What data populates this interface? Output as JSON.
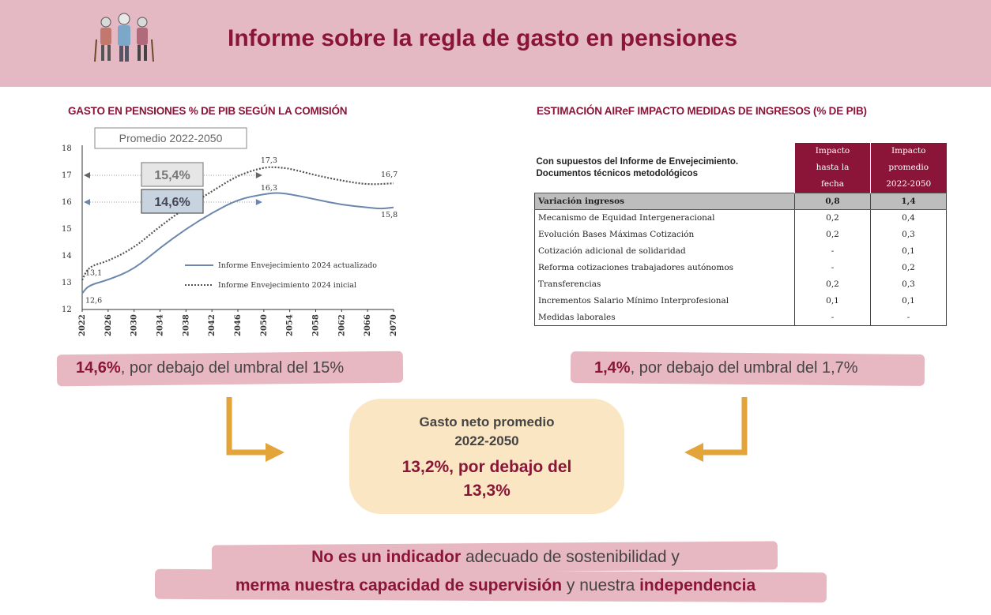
{
  "header": {
    "title": "Informe sobre la regla de gasto en pensiones",
    "colors": {
      "band": "#e5b9c3",
      "accent": "#8a1538"
    },
    "logo_icon": "elderly-people-icon"
  },
  "left_section": {
    "title": "GASTO EN PENSIONES % DE PIB SEGÚN LA COMISIÓN"
  },
  "chart_data": {
    "type": "line",
    "ylim": [
      12,
      18
    ],
    "yticks": [
      "12",
      "13",
      "14",
      "15",
      "16",
      "17",
      "18"
    ],
    "xlim": [
      2022,
      2070
    ],
    "xticks": [
      "2022",
      "2026",
      "2030",
      "2034",
      "2038",
      "2042",
      "2046",
      "2050",
      "2054",
      "2058",
      "2062",
      "2066",
      "2070"
    ],
    "series": [
      {
        "name": "Informe Envejecimiento 2024 actualizado",
        "style": "solid",
        "color": "#6b87ab",
        "x": [
          2022,
          2023,
          2026,
          2030,
          2034,
          2038,
          2042,
          2046,
          2050,
          2052,
          2054,
          2058,
          2062,
          2066,
          2068,
          2070
        ],
        "y": [
          12.6,
          12.9,
          13.1,
          13.5,
          14.3,
          15.0,
          15.6,
          16.1,
          16.3,
          16.35,
          16.3,
          16.1,
          15.9,
          15.8,
          15.75,
          15.8
        ]
      },
      {
        "name": "Informe Envejecimiento 2024 inicial",
        "style": "dotted",
        "color": "#555555",
        "x": [
          2022,
          2023,
          2026,
          2030,
          2034,
          2038,
          2042,
          2046,
          2050,
          2052,
          2054,
          2058,
          2062,
          2066,
          2070
        ],
        "y": [
          13.1,
          13.6,
          13.8,
          14.3,
          15.1,
          15.8,
          16.4,
          17.0,
          17.3,
          17.3,
          17.25,
          17.0,
          16.8,
          16.65,
          16.7
        ]
      }
    ],
    "data_labels": [
      {
        "text": "12,6",
        "x": 2022,
        "y": 12.6
      },
      {
        "text": "13,1",
        "x": 2022,
        "y": 13.1
      },
      {
        "text": "17,3",
        "x": 2050,
        "y": 17.3
      },
      {
        "text": "16,3",
        "x": 2050,
        "y": 16.3
      },
      {
        "text": "16,7",
        "x": 2070,
        "y": 16.7
      },
      {
        "text": "15,8",
        "x": 2070,
        "y": 15.8
      }
    ],
    "average_box_title": "Promedio 2022-2050",
    "averages": [
      {
        "text": "15,4%",
        "y": 17.0
      },
      {
        "text": "14,6%",
        "y": 16.0
      }
    ]
  },
  "right_section": {
    "title": "ESTIMACIÓN AIReF  IMPACTO MEDIDAS DE INGRESOS (% DE PIB)",
    "table": {
      "header_left_line1": "Con supuestos del Informe de Envejecimiento.",
      "header_left_line2": "Documentos técnicos metodológicos",
      "col1_lines": [
        "Impacto",
        "hasta la",
        "fecha"
      ],
      "col2_lines": [
        "Impacto",
        "promedio",
        "2022-2050"
      ],
      "rows": [
        {
          "label": "Variación ingresos",
          "v1": "0,8",
          "v2": "1,4"
        },
        {
          "label": "Mecanismo de Equidad Intergeneracional",
          "v1": "0,2",
          "v2": "0,4"
        },
        {
          "label": "Evolución Bases Máximas Cotización",
          "v1": "0,2",
          "v2": "0,3"
        },
        {
          "label": "Cotización adicional de solidaridad",
          "v1": "-",
          "v2": "0,1"
        },
        {
          "label": "Reforma cotizaciones trabajadores autónomos",
          "v1": "-",
          "v2": "0,2"
        },
        {
          "label": "Transferencias",
          "v1": "0,2",
          "v2": "0,3"
        },
        {
          "label": "Incrementos Salario Mínimo Interprofesional",
          "v1": "0,1",
          "v2": "0,1"
        },
        {
          "label": "Medidas laborales",
          "v1": "-",
          "v2": "-"
        }
      ]
    }
  },
  "left_callout": {
    "bold": "14,6%",
    "rest": ", por debajo del umbral del 15%"
  },
  "right_callout": {
    "bold": "1,4%",
    "rest": ", por debajo del umbral del 1,7%"
  },
  "center_box": {
    "line1": "Gasto neto promedio",
    "line2": "2022-2050",
    "line3": "13,2%, por debajo del",
    "line4": "13,3%",
    "color": "#fbe6c4"
  },
  "bottom": {
    "line1_bold": "No es un indicador",
    "line1_rest": " adecuado de sostenibilidad y",
    "line2_bold1": "merma nuestra capacidad de supervisión",
    "line2_mid": " y nuestra ",
    "line2_bold2": "independencia"
  },
  "arrow_color": "#e3a43a"
}
